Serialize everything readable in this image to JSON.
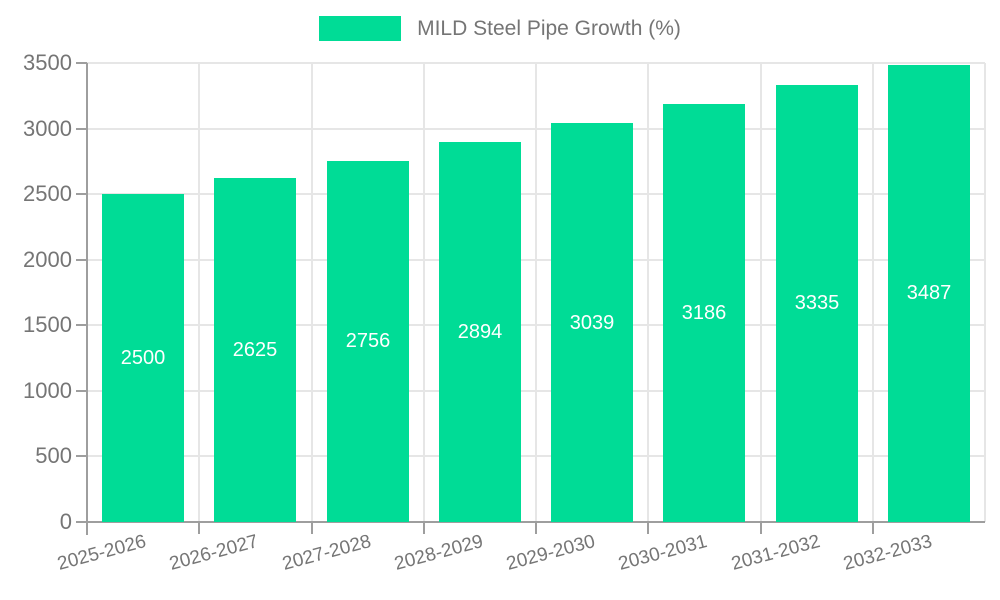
{
  "chart_data": {
    "type": "bar",
    "title": "",
    "legend": {
      "label": "MILD Steel Pipe Growth (%)",
      "position": "top"
    },
    "categories": [
      "2025-2026",
      "2026-2027",
      "2027-2028",
      "2028-2029",
      "2029-2030",
      "2030-2031",
      "2031-2032",
      "2032-2033"
    ],
    "series": [
      {
        "name": "MILD Steel Pipe Growth (%)",
        "values": [
          2500,
          2625,
          2756,
          2894,
          3039,
          3186,
          3335,
          3487
        ]
      }
    ],
    "value_labels_shown": true,
    "xlabel": "",
    "ylabel": "",
    "ylim": [
      0,
      3500
    ],
    "yticks": [
      0,
      500,
      1000,
      1500,
      2000,
      2500,
      3000,
      3500
    ],
    "grid": true
  },
  "colors": {
    "bar": "#00dc96",
    "grid": "#e6e6e6",
    "axis": "#9e9e9e",
    "tick_text": "#757575",
    "value_text": "#ffffff",
    "background": "#ffffff"
  }
}
